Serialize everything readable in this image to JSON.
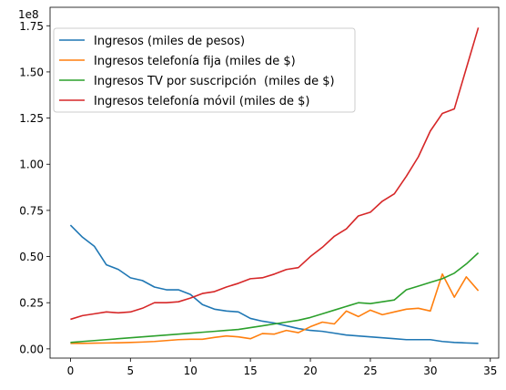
{
  "chart_data": {
    "type": "line",
    "x": [
      0,
      1,
      2,
      3,
      4,
      5,
      6,
      7,
      8,
      9,
      10,
      11,
      12,
      13,
      14,
      15,
      16,
      17,
      18,
      19,
      20,
      21,
      22,
      23,
      24,
      25,
      26,
      27,
      28,
      29,
      30,
      31,
      32,
      33,
      34
    ],
    "xlim": [
      -1.7,
      35.7
    ],
    "ylim": [
      -5000000,
      185000000
    ],
    "xticks": [
      0,
      5,
      10,
      15,
      20,
      25,
      30,
      35
    ],
    "yticks": [
      0,
      25000000,
      50000000,
      75000000,
      100000000,
      125000000,
      150000000,
      175000000
    ],
    "xtick_labels": [
      "0",
      "5",
      "10",
      "15",
      "20",
      "25",
      "30",
      "35"
    ],
    "ytick_labels": [
      "0.00",
      "0.25",
      "0.50",
      "0.75",
      "1.00",
      "1.25",
      "1.50",
      "1.75"
    ],
    "offset_label": "1e8",
    "legend_position": "upper-left",
    "grid": false,
    "series": [
      {
        "name": "Ingresos (miles de pesos)",
        "color": "#1f77b4",
        "values": [
          67000000,
          60500000,
          55500000,
          45500000,
          43000000,
          38500000,
          37000000,
          33500000,
          32000000,
          32000000,
          29500000,
          24000000,
          21500000,
          20500000,
          20000000,
          16500000,
          15000000,
          14000000,
          12500000,
          11000000,
          10000000,
          9500000,
          8500000,
          7500000,
          7000000,
          6500000,
          6000000,
          5500000,
          5000000,
          5000000,
          5000000,
          4000000,
          3500000,
          3200000,
          3000000
        ]
      },
      {
        "name": "Ingresos telefonía fija (miles de $)",
        "color": "#ff7f0e",
        "values": [
          3000000,
          3000000,
          3100000,
          3200000,
          3300000,
          3500000,
          3700000,
          4000000,
          4500000,
          5000000,
          5200000,
          5200000,
          6200000,
          7000000,
          6500000,
          5500000,
          8300000,
          8000000,
          10000000,
          8800000,
          12000000,
          14500000,
          13500000,
          20500000,
          17500000,
          21000000,
          18500000,
          20000000,
          21500000,
          22000000,
          20500000,
          40500000,
          28000000,
          39000000,
          31500000
        ]
      },
      {
        "name": "Ingresos TV por suscripción  (miles de $)",
        "color": "#2ca02c",
        "values": [
          3500000,
          4000000,
          4500000,
          5000000,
          5500000,
          6000000,
          6500000,
          7000000,
          7500000,
          8000000,
          8500000,
          9000000,
          9500000,
          10000000,
          10500000,
          11500000,
          12500000,
          13500000,
          14500000,
          15500000,
          17000000,
          19000000,
          21000000,
          23000000,
          25000000,
          24500000,
          25500000,
          26500000,
          32000000,
          34000000,
          36000000,
          38000000,
          41000000,
          46000000,
          52000000
        ]
      },
      {
        "name": "Ingresos telefonía móvil (miles de $)",
        "color": "#d62728",
        "values": [
          16000000,
          18000000,
          19000000,
          20000000,
          19500000,
          20000000,
          22000000,
          25000000,
          25000000,
          25500000,
          27500000,
          30000000,
          31000000,
          33500000,
          35500000,
          38000000,
          38500000,
          40500000,
          43000000,
          44000000,
          50000000,
          55000000,
          61000000,
          65000000,
          72000000,
          74000000,
          80000000,
          84000000,
          93500000,
          104000000,
          118000000,
          127500000,
          130000000,
          152000000,
          174000000
        ]
      }
    ]
  }
}
